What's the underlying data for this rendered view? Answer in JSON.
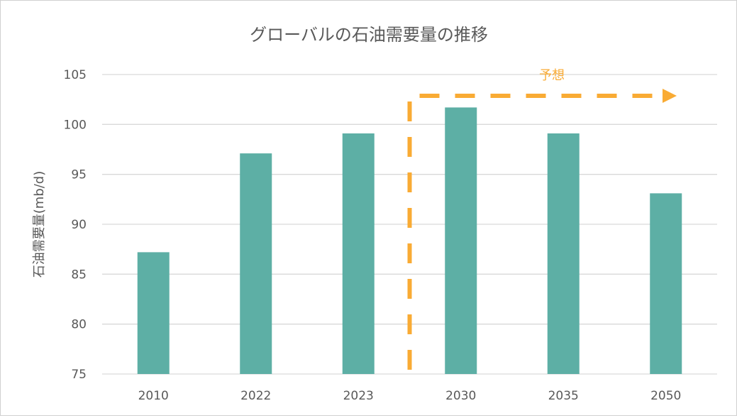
{
  "chart_data": {
    "type": "bar",
    "title": "グローバルの石油需要量の推移",
    "xlabel": "",
    "ylabel": "石油需要量(mb/d)",
    "categories": [
      "2010",
      "2022",
      "2023",
      "2030",
      "2035",
      "2050"
    ],
    "values": [
      87.2,
      97.1,
      99.1,
      101.7,
      99.1,
      93.1
    ],
    "ylim": [
      75,
      105
    ],
    "yticks": [
      75,
      80,
      85,
      90,
      95,
      100,
      105
    ],
    "grid": true,
    "legend": "none",
    "annotation": {
      "label": "予想",
      "starts_before_category": "2030",
      "style": "dashed arrow"
    },
    "colors": {
      "bar": "#5DAFA5",
      "annotation": "#F9AB34",
      "text": "#595959",
      "grid": "#D9D9D9"
    }
  }
}
